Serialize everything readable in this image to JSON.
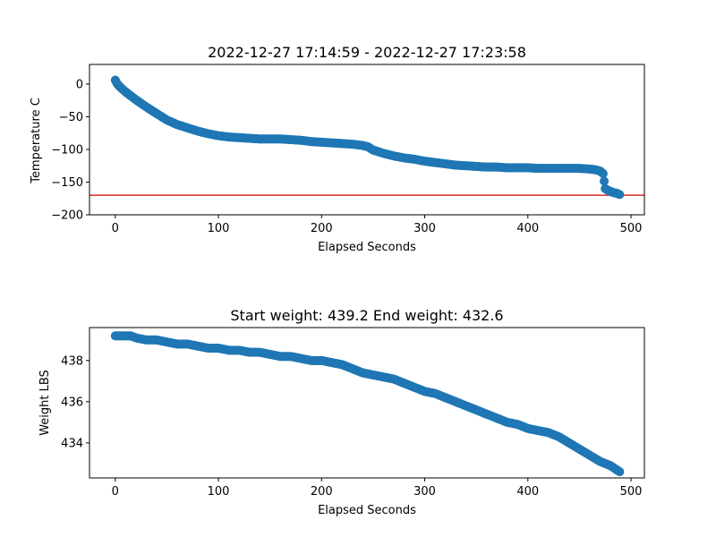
{
  "colors": {
    "series": "#1f77b4",
    "reference_line": "#d62728"
  },
  "chart_data": [
    {
      "type": "scatter",
      "title": "2022-12-27 17:14:59 - 2022-12-27 17:23:58",
      "xlabel": "Elapsed Seconds",
      "ylabel": "Temperature C",
      "xlim": [
        -25,
        513
      ],
      "ylim": [
        -200,
        30
      ],
      "xticks": [
        0,
        100,
        200,
        300,
        400,
        500
      ],
      "yticks": [
        0,
        -50,
        -100,
        -150,
        -200
      ],
      "xtick_labels": [
        "0",
        "100",
        "200",
        "300",
        "400",
        "500"
      ],
      "ytick_labels": [
        "0",
        "−50",
        "−100",
        "−150",
        "−200"
      ],
      "grid": false,
      "reference_lines": [
        {
          "axis": "y",
          "value": -170,
          "color": "#d62728"
        }
      ],
      "series": [
        {
          "x": [
            0,
            2,
            5,
            10,
            15,
            20,
            30,
            40,
            50,
            60,
            70,
            80,
            90,
            100,
            110,
            120,
            130,
            140,
            150,
            160,
            170,
            180,
            190,
            200,
            210,
            220,
            230,
            240,
            245,
            250,
            260,
            270,
            280,
            290,
            300,
            310,
            320,
            330,
            340,
            350,
            360,
            370,
            380,
            390,
            400,
            410,
            420,
            430,
            440,
            450,
            460,
            465,
            470,
            473,
            475,
            477,
            480,
            483,
            486,
            489
          ],
          "y": [
            6,
            0,
            -5,
            -12,
            -18,
            -24,
            -35,
            -45,
            -55,
            -62,
            -67,
            -72,
            -76,
            -79,
            -81,
            -82,
            -83,
            -84,
            -84,
            -84,
            -85,
            -86,
            -88,
            -89,
            -90,
            -91,
            -92,
            -94,
            -96,
            -101,
            -106,
            -110,
            -113,
            -115,
            -118,
            -120,
            -122,
            -124,
            -125,
            -126,
            -127,
            -127,
            -128,
            -128,
            -128,
            -129,
            -129,
            -129,
            -129,
            -129,
            -130,
            -131,
            -133,
            -137,
            -160,
            -162,
            -164,
            -166,
            -167,
            -169
          ]
        }
      ]
    },
    {
      "type": "scatter",
      "title": "Start weight: 439.2 End weight: 432.6",
      "xlabel": "Elapsed Seconds",
      "ylabel": "Weight LBS",
      "xlim": [
        -25,
        513
      ],
      "ylim": [
        432.3,
        439.6
      ],
      "xticks": [
        0,
        100,
        200,
        300,
        400,
        500
      ],
      "yticks": [
        434,
        436,
        438
      ],
      "xtick_labels": [
        "0",
        "100",
        "200",
        "300",
        "400",
        "500"
      ],
      "ytick_labels": [
        "434",
        "436",
        "438"
      ],
      "grid": false,
      "series": [
        {
          "x": [
            0,
            5,
            10,
            15,
            20,
            30,
            40,
            50,
            60,
            70,
            80,
            90,
            100,
            110,
            120,
            130,
            140,
            150,
            160,
            170,
            180,
            190,
            200,
            210,
            220,
            230,
            240,
            250,
            260,
            270,
            280,
            290,
            300,
            310,
            320,
            330,
            340,
            350,
            360,
            370,
            380,
            390,
            400,
            410,
            420,
            430,
            440,
            450,
            460,
            470,
            480,
            489
          ],
          "y": [
            439.2,
            439.2,
            439.2,
            439.2,
            439.1,
            439.0,
            439.0,
            438.9,
            438.8,
            438.8,
            438.7,
            438.6,
            438.6,
            438.5,
            438.5,
            438.4,
            438.4,
            438.3,
            438.2,
            438.2,
            438.1,
            438.0,
            438.0,
            437.9,
            437.8,
            437.6,
            437.4,
            437.3,
            437.2,
            437.1,
            436.9,
            436.7,
            436.5,
            436.4,
            436.2,
            436.0,
            435.8,
            435.6,
            435.4,
            435.2,
            435.0,
            434.9,
            434.7,
            434.6,
            434.5,
            434.3,
            434.0,
            433.7,
            433.4,
            433.1,
            432.9,
            432.6
          ]
        }
      ]
    }
  ]
}
